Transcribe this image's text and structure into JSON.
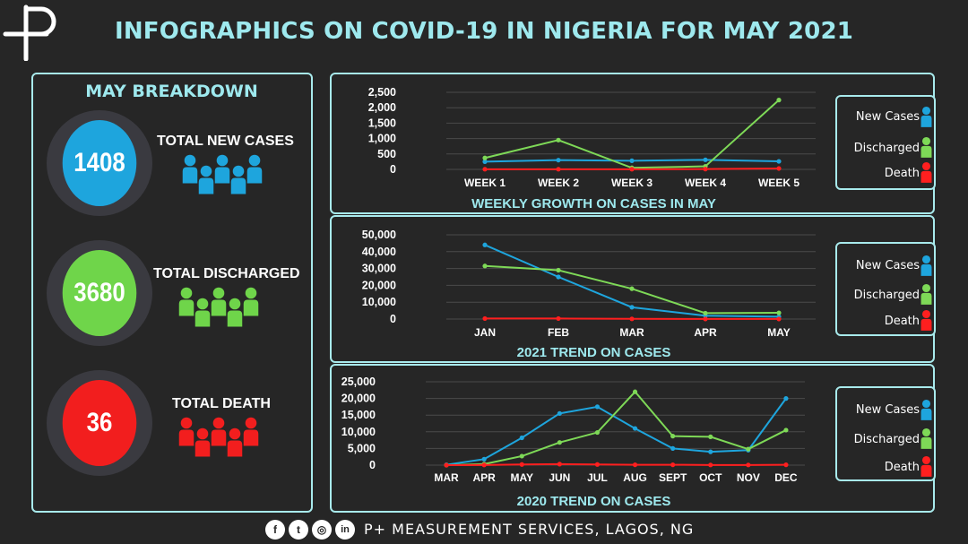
{
  "page": {
    "title": "INFOGRAPHICS ON COVID-19 IN NIGERIA FOR MAY 2021"
  },
  "breakdown": {
    "title": "MAY BREAKDOWN",
    "stats": [
      {
        "value": "1408",
        "label": "TOTAL NEW CASES",
        "color": "#1ea5dd"
      },
      {
        "value": "3680",
        "label": "TOTAL DISCHARGED",
        "color": "#6fd54a"
      },
      {
        "value": "36",
        "label": "TOTAL DEATH",
        "color": "#f21e1e"
      }
    ]
  },
  "legend": {
    "items": [
      {
        "label": "New Cases",
        "color": "#1ea5dd",
        "icon": "person-icon"
      },
      {
        "label": "Discharged",
        "color": "#7ed957",
        "icon": "person-icon"
      },
      {
        "label": "Death",
        "color": "#ff1f1f",
        "icon": "person-icon"
      }
    ]
  },
  "chart_data": [
    {
      "type": "line",
      "title": "WEEKLY GROWTH ON CASES IN MAY",
      "categories": [
        "WEEK 1",
        "WEEK 2",
        "WEEK 3",
        "WEEK 4",
        "WEEK 5"
      ],
      "ylim": [
        0,
        2500
      ],
      "yticks": [
        0,
        500,
        1000,
        1500,
        2000,
        2500
      ],
      "ytick_labels": [
        "0",
        "500",
        "1,000",
        "1,500",
        "2,000",
        "2,500"
      ],
      "grid": true,
      "legend_position": "right",
      "series": [
        {
          "name": "New Cases",
          "color": "#1ea5dd",
          "values": [
            250,
            300,
            280,
            310,
            260
          ]
        },
        {
          "name": "Discharged",
          "color": "#7ed957",
          "values": [
            370,
            950,
            50,
            100,
            2250
          ]
        },
        {
          "name": "Death",
          "color": "#ff1f1f",
          "values": [
            5,
            5,
            5,
            10,
            30
          ]
        }
      ]
    },
    {
      "type": "line",
      "title": "2021 TREND ON CASES",
      "categories": [
        "JAN",
        "FEB",
        "MAR",
        "APR",
        "MAY"
      ],
      "ylim": [
        0,
        50000
      ],
      "yticks": [
        0,
        10000,
        20000,
        30000,
        40000,
        50000
      ],
      "ytick_labels": [
        "0",
        "10,000",
        "20,000",
        "30,000",
        "40,000",
        "50,000"
      ],
      "grid": true,
      "legend_position": "right",
      "series": [
        {
          "name": "New Cases",
          "color": "#1ea5dd",
          "values": [
            44000,
            25000,
            7000,
            2000,
            1400
          ]
        },
        {
          "name": "Discharged",
          "color": "#7ed957",
          "values": [
            31500,
            29000,
            18000,
            3500,
            3700
          ]
        },
        {
          "name": "Death",
          "color": "#ff1f1f",
          "values": [
            300,
            300,
            100,
            50,
            36
          ]
        }
      ]
    },
    {
      "type": "line",
      "title": "2020 TREND ON CASES",
      "categories": [
        "MAR",
        "APR",
        "MAY",
        "JUN",
        "JUL",
        "AUG",
        "SEPT",
        "OCT",
        "NOV",
        "DEC"
      ],
      "ylim": [
        0,
        25000
      ],
      "yticks": [
        0,
        5000,
        10000,
        15000,
        20000,
        25000
      ],
      "ytick_labels": [
        "0",
        "5,000",
        "10,000",
        "15,000",
        "20,000",
        "25,000"
      ],
      "grid": true,
      "legend_position": "right",
      "series": [
        {
          "name": "New Cases",
          "color": "#1ea5dd",
          "values": [
            100,
            1800,
            8200,
            15500,
            17500,
            11000,
            5000,
            4000,
            4500,
            20000
          ]
        },
        {
          "name": "Discharged",
          "color": "#7ed957",
          "values": [
            0,
            300,
            2700,
            6800,
            9800,
            22000,
            8700,
            8500,
            4800,
            10500
          ]
        },
        {
          "name": "Death",
          "color": "#ff1f1f",
          "values": [
            0,
            50,
            200,
            300,
            200,
            100,
            100,
            50,
            50,
            100
          ]
        }
      ]
    }
  ],
  "footer": {
    "text": "P+ MEASUREMENT SERVICES, LAGOS, NG",
    "social": [
      {
        "icon": "facebook-icon",
        "glyph": "f"
      },
      {
        "icon": "twitter-icon",
        "glyph": "t"
      },
      {
        "icon": "instagram-icon",
        "glyph": "◎"
      },
      {
        "icon": "linkedin-icon",
        "glyph": "in"
      }
    ]
  }
}
